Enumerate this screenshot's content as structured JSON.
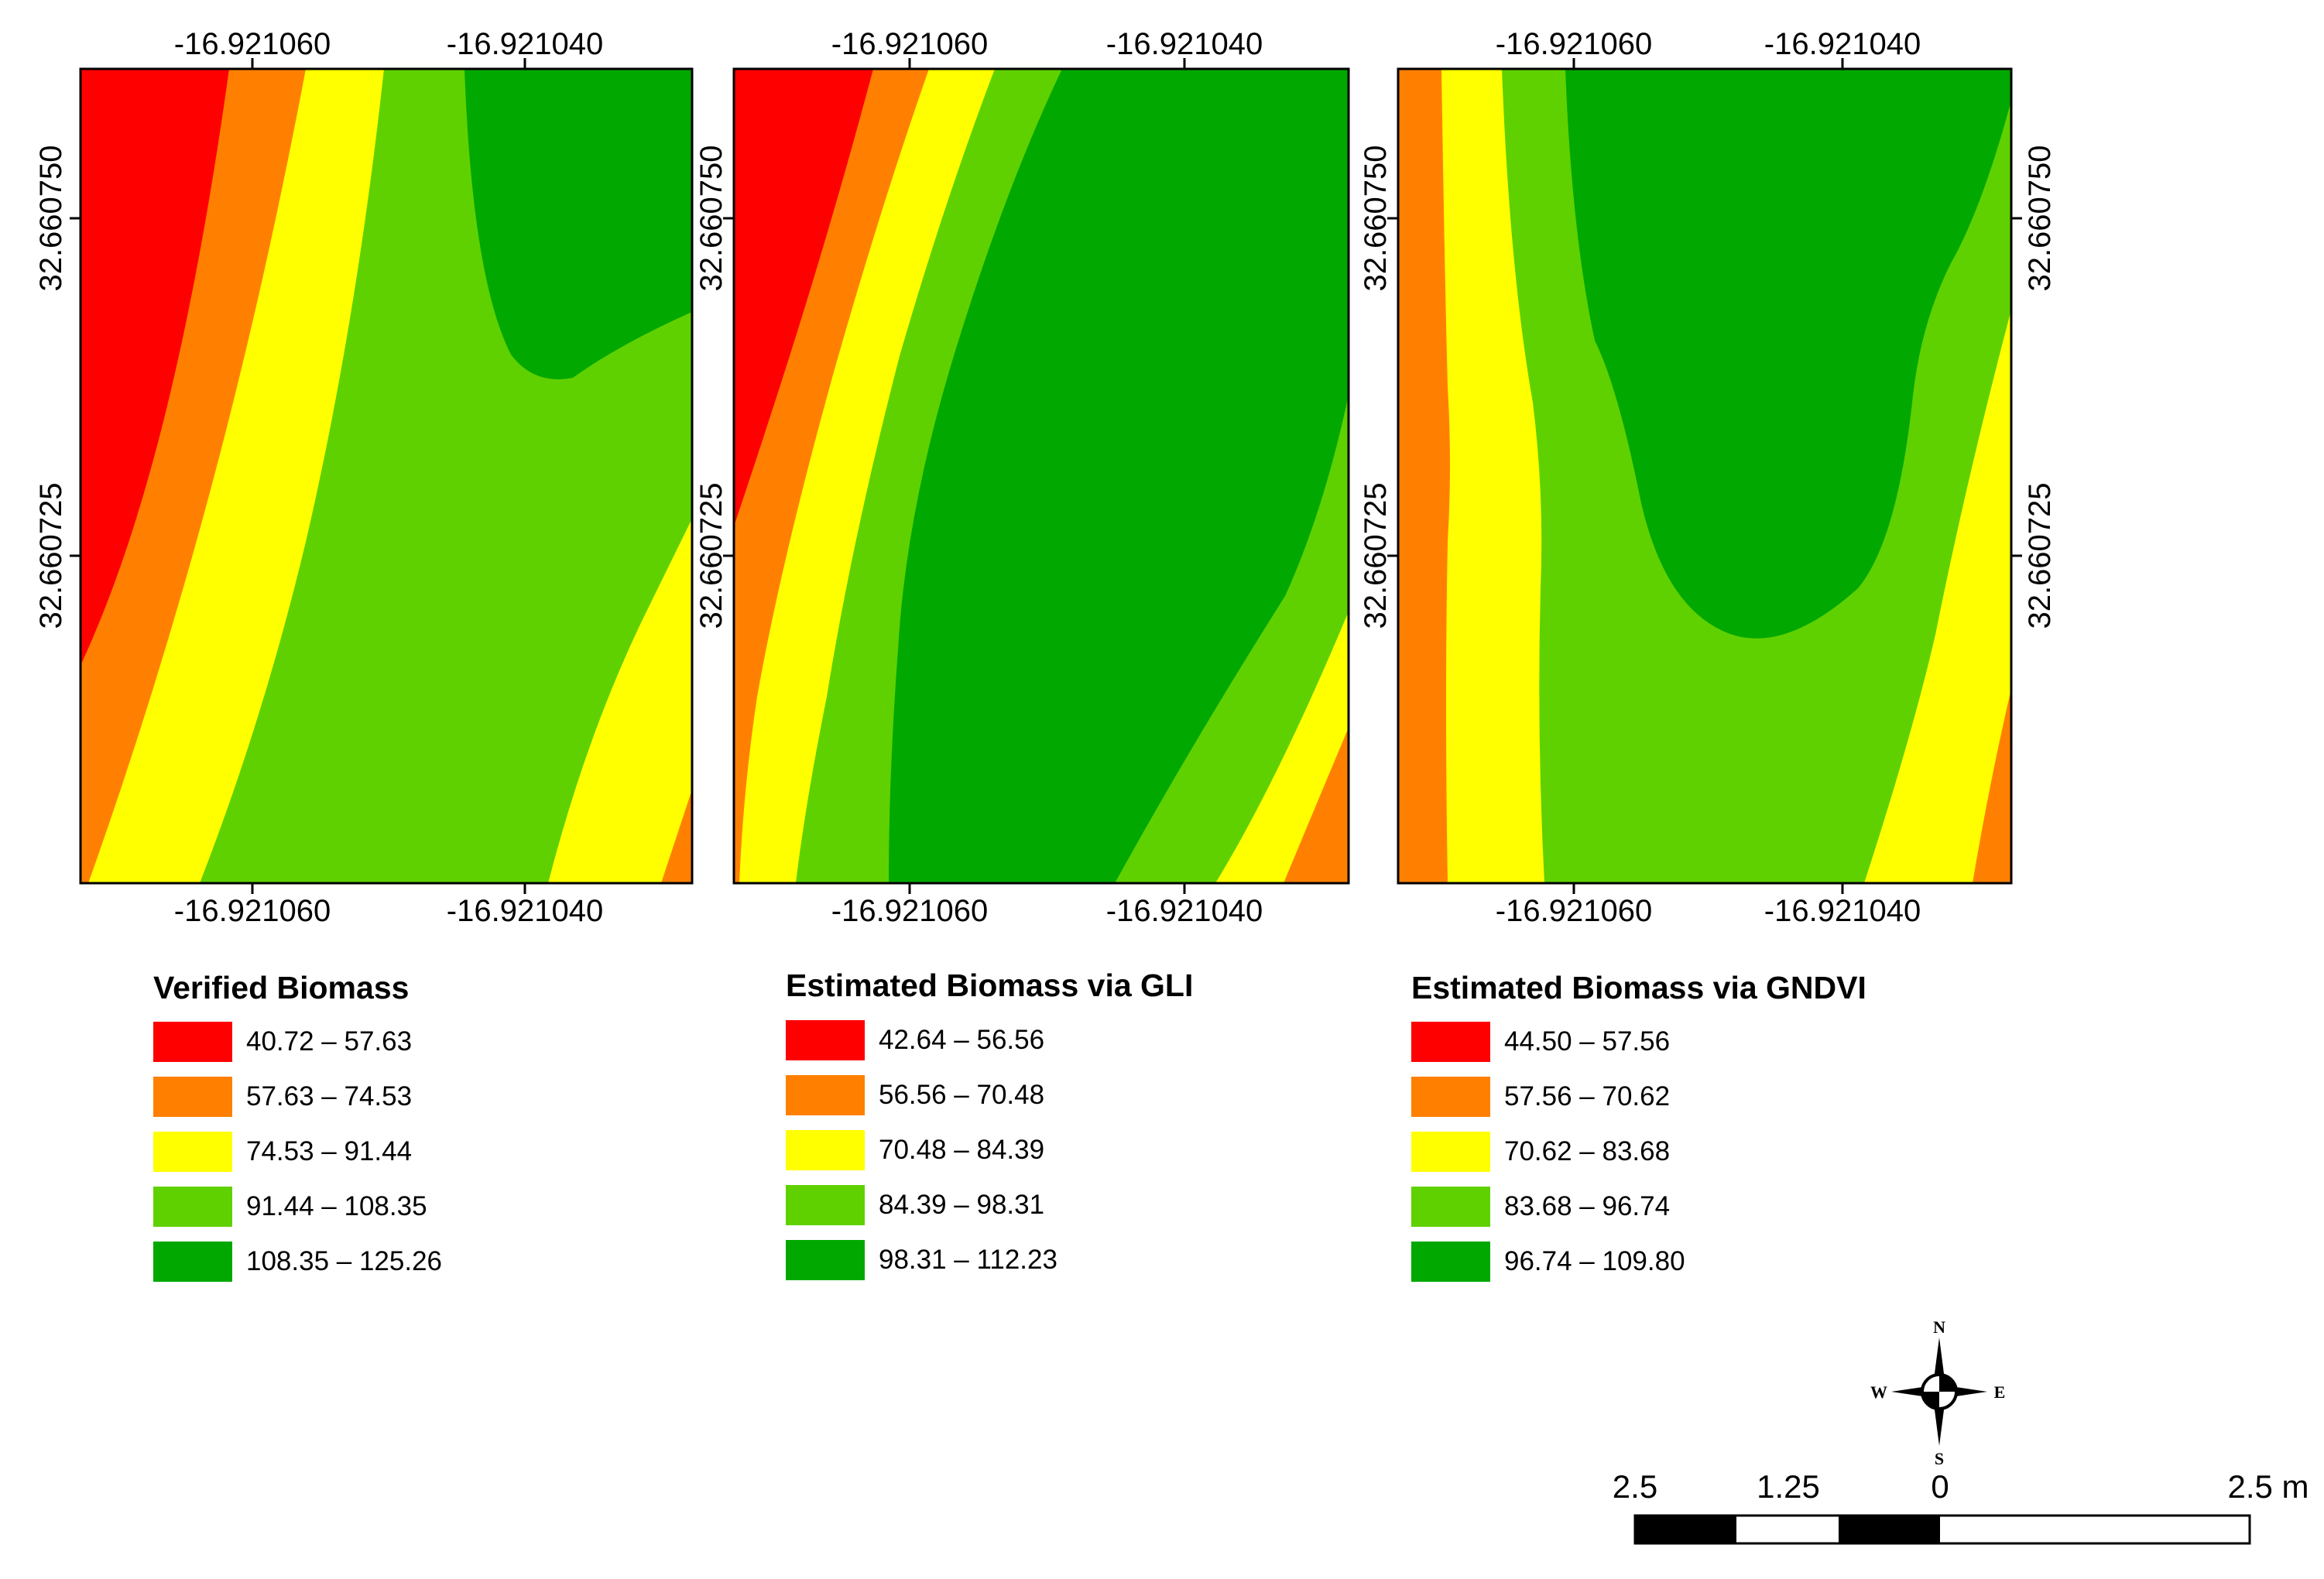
{
  "colors": {
    "class1": "#ff0000",
    "class2": "#ff8000",
    "class3": "#ffff00",
    "class4": "#5fd100",
    "class5": "#00a800"
  },
  "maps": [
    {
      "id": "verified",
      "x_ticks": [
        "-16.921060",
        "-16.921040"
      ],
      "y_ticks": [
        "32.660750",
        "32.660725"
      ],
      "legend": {
        "title": "Verified Biomass",
        "classes": [
          "40.72 – 57.63",
          "57.63 – 74.53",
          "74.53 – 91.44",
          "91.44 – 108.35",
          "108.35 – 125.26"
        ]
      }
    },
    {
      "id": "gli",
      "x_ticks": [
        "-16.921060",
        "-16.921040"
      ],
      "y_ticks": [
        "32.660750",
        "32.660725"
      ],
      "legend": {
        "title": "Estimated Biomass via GLI",
        "classes": [
          "42.64 – 56.56",
          "56.56 – 70.48",
          "70.48 – 84.39",
          "84.39 – 98.31",
          "98.31 – 112.23"
        ]
      }
    },
    {
      "id": "gndvi",
      "x_ticks": [
        "-16.921060",
        "-16.921040"
      ],
      "y_ticks": [
        "32.660750",
        "32.660725"
      ],
      "legend": {
        "title": "Estimated Biomass via GNDVI",
        "classes": [
          "44.50 – 57.56",
          "57.56 – 70.62",
          "70.62 – 83.68",
          "83.68 – 96.74",
          "96.74 – 109.80"
        ]
      }
    }
  ],
  "north_arrow": {
    "n": "N",
    "s": "S",
    "e": "E",
    "w": "W"
  },
  "scale_bar": {
    "labels": [
      "2.5",
      "1.25",
      "0",
      "2.5 m"
    ]
  }
}
